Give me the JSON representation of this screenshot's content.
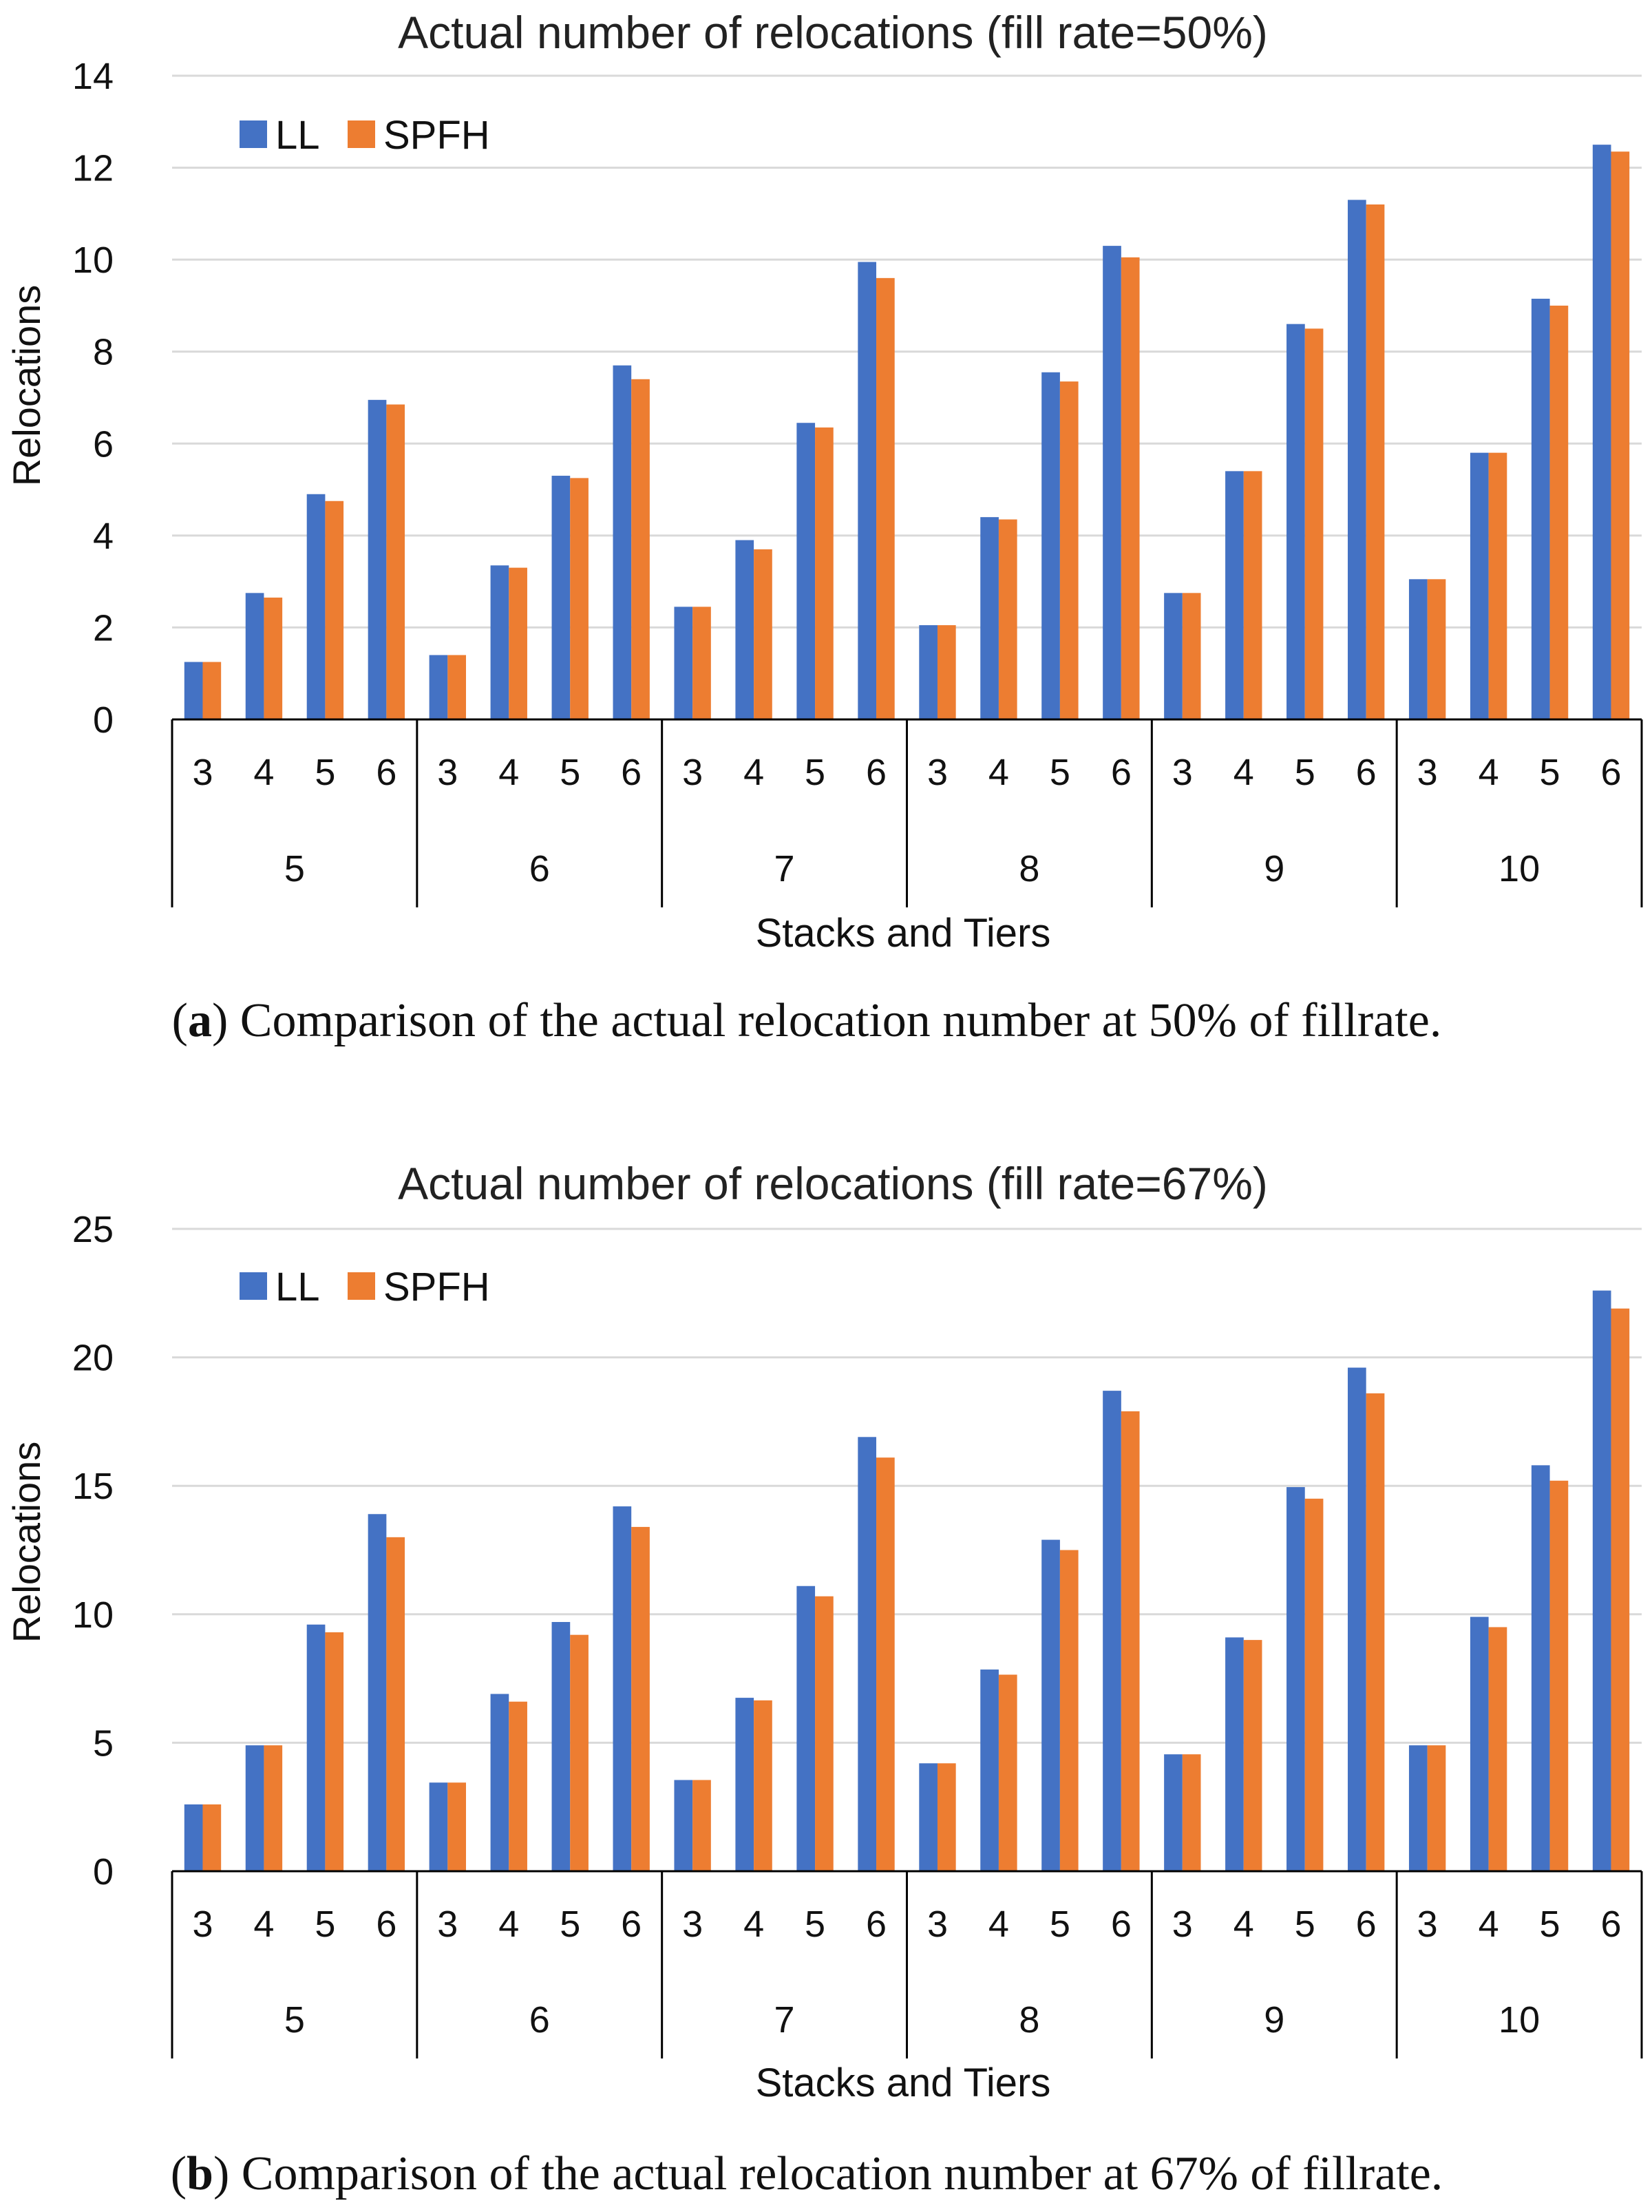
{
  "colors": {
    "LL": "#4472c4",
    "SPFH": "#ed7d31",
    "grid": "#d9d9d9",
    "axis": "#000000"
  },
  "chart_data": [
    {
      "type": "bar",
      "title": "Actual number of relocations  (fill rate=50%)",
      "ylabel": "Relocations",
      "xlabel": "Stacks and Tiers",
      "ylim": [
        0,
        14
      ],
      "yticks": [
        0,
        2,
        4,
        6,
        8,
        10,
        12,
        14
      ],
      "groups": [
        "5",
        "6",
        "7",
        "8",
        "9",
        "10"
      ],
      "tiers": [
        "3",
        "4",
        "5",
        "6"
      ],
      "legend_position": "top-left",
      "series": [
        {
          "name": "LL",
          "values": [
            1.25,
            2.75,
            4.9,
            6.95,
            1.4,
            3.35,
            5.3,
            7.7,
            2.45,
            3.9,
            6.45,
            9.95,
            2.05,
            4.4,
            7.55,
            10.3,
            2.75,
            5.4,
            8.6,
            11.3,
            3.05,
            5.8,
            9.15,
            12.5
          ]
        },
        {
          "name": "SPFH",
          "values": [
            1.25,
            2.65,
            4.75,
            6.85,
            1.4,
            3.3,
            5.25,
            7.4,
            2.45,
            3.7,
            6.35,
            9.6,
            2.05,
            4.35,
            7.35,
            10.05,
            2.75,
            5.4,
            8.5,
            11.2,
            3.05,
            5.8,
            9.0,
            12.35
          ]
        }
      ],
      "caption_letter": "a",
      "caption": " Comparison of the actual relocation number at 50% of fillrate."
    },
    {
      "type": "bar",
      "title": "Actual number of relocations  (fill rate=67%)",
      "ylabel": "Relocations",
      "xlabel": "Stacks and Tiers",
      "ylim": [
        0,
        25
      ],
      "yticks": [
        0,
        5,
        10,
        15,
        20,
        25
      ],
      "groups": [
        "5",
        "6",
        "7",
        "8",
        "9",
        "10"
      ],
      "tiers": [
        "3",
        "4",
        "5",
        "6"
      ],
      "legend_position": "top-left",
      "series": [
        {
          "name": "LL",
          "values": [
            2.6,
            4.9,
            9.6,
            13.9,
            3.45,
            6.9,
            9.7,
            14.2,
            3.55,
            6.75,
            11.1,
            16.9,
            4.2,
            7.85,
            12.9,
            18.7,
            4.55,
            9.1,
            14.95,
            19.6,
            4.9,
            9.9,
            15.8,
            22.6
          ]
        },
        {
          "name": "SPFH",
          "values": [
            2.6,
            4.9,
            9.3,
            13.0,
            3.45,
            6.6,
            9.2,
            13.4,
            3.55,
            6.65,
            10.7,
            16.1,
            4.2,
            7.65,
            12.5,
            17.9,
            4.55,
            9.0,
            14.5,
            18.6,
            4.9,
            9.5,
            15.2,
            21.9
          ]
        }
      ],
      "caption_letter": "b",
      "caption": " Comparison of the actual relocation number at 67% of fillrate."
    }
  ]
}
